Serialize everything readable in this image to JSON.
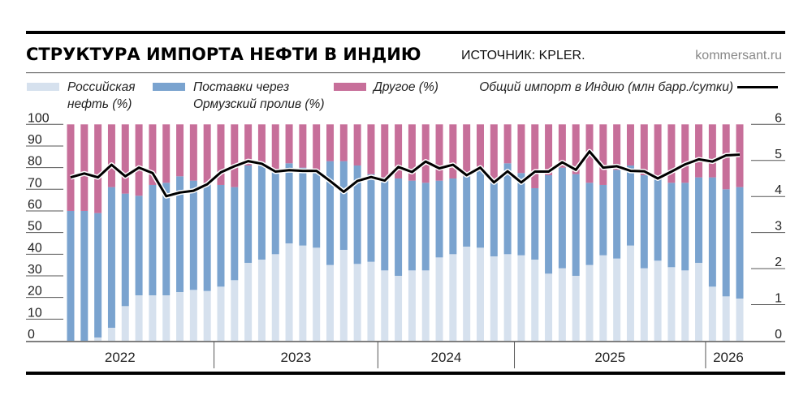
{
  "chart_data": {
    "type": "bar",
    "stacked": true,
    "title": "СТРУКТУРА ИМПОРТА НЕФТИ В ИНДИЮ",
    "source": "ИСТОЧНИК: KPLER.",
    "site": "kommersant.ru",
    "ylim": [
      0,
      100
    ],
    "y_ticks": [
      "0",
      "10",
      "20",
      "30",
      "40",
      "50",
      "60",
      "70",
      "80",
      "90",
      "100"
    ],
    "y2lim": [
      0,
      6
    ],
    "y2_ticks": [
      "0",
      "1",
      "2",
      "3",
      "4",
      "5",
      "6"
    ],
    "grid": false,
    "legend_placement": "top",
    "year_groups": [
      {
        "label": "2022",
        "count": 11
      },
      {
        "label": "2023",
        "count": 12
      },
      {
        "label": "2024",
        "count": 10
      },
      {
        "label": "2025",
        "count": 14
      },
      {
        "label": "2026",
        "count": 3
      }
    ],
    "series": [
      {
        "name": "Российская нефть (%)",
        "legend_lines": [
          "Российская",
          "нефть (%)"
        ],
        "color": "#d6e1ee",
        "values": [
          0,
          0,
          1.5,
          6,
          16,
          21,
          21,
          21,
          22.5,
          23.5,
          23,
          25,
          28,
          36,
          37.5,
          40,
          45,
          44,
          43,
          35,
          42,
          35.5,
          36.5,
          32.5,
          30,
          32.5,
          32.5,
          38.5,
          40,
          43.5,
          43,
          39,
          40,
          39.5,
          37.5,
          31,
          33.5,
          30,
          35,
          39.5,
          38,
          44,
          33.5,
          37,
          34,
          32.5,
          36,
          25,
          20.5,
          19.5
        ]
      },
      {
        "name": "Поставки через Ормузский пролив (%)",
        "legend_lines": [
          "Поставки через",
          "Ормузский пролив (%)"
        ],
        "color": "#7aa3cf",
        "values": [
          60,
          60,
          57.5,
          65,
          52,
          46,
          51,
          52,
          53.5,
          50.5,
          49,
          47,
          43,
          45,
          43.5,
          38,
          37,
          36,
          35,
          48,
          41,
          45.5,
          40.5,
          43,
          45,
          41.5,
          40.5,
          35.5,
          35,
          32.5,
          37,
          34,
          42,
          38,
          33,
          45.5,
          46.5,
          47,
          38,
          32.5,
          41,
          37,
          43,
          37.5,
          39,
          40.5,
          39.5,
          50.5,
          49.5,
          51.5
        ]
      },
      {
        "name": "Другое (%)",
        "legend_lines": [
          "Другое (%)"
        ],
        "color": "#c76f9a",
        "values": [
          40,
          40,
          41,
          29,
          32,
          33,
          28,
          27,
          24,
          26,
          28,
          28,
          29,
          19,
          19,
          22,
          18,
          20,
          22,
          17,
          17,
          19,
          23,
          24.5,
          25,
          26,
          27,
          26,
          25,
          24,
          20,
          27,
          18,
          22.5,
          29.5,
          23.5,
          20,
          23,
          27,
          28,
          21,
          19,
          23.5,
          25.5,
          27,
          27,
          24.5,
          24.5,
          30,
          29
        ]
      },
      {
        "name": "Общий импорт в Индию (млн барр./сутки)",
        "type": "line",
        "axis": "right",
        "color": "#000000",
        "values": [
          4.53,
          4.64,
          4.53,
          4.88,
          4.56,
          4.8,
          4.65,
          4.01,
          4.11,
          4.16,
          4.34,
          4.67,
          4.84,
          4.98,
          4.91,
          4.69,
          4.73,
          4.71,
          4.71,
          4.43,
          4.13,
          4.43,
          4.54,
          4.44,
          4.82,
          4.68,
          4.97,
          4.78,
          4.88,
          4.59,
          4.8,
          4.39,
          4.7,
          4.39,
          4.69,
          4.69,
          4.95,
          4.74,
          5.25,
          4.8,
          4.84,
          4.71,
          4.7,
          4.5,
          4.69,
          4.89,
          5.03,
          4.97,
          5.14,
          5.16
        ]
      }
    ]
  }
}
